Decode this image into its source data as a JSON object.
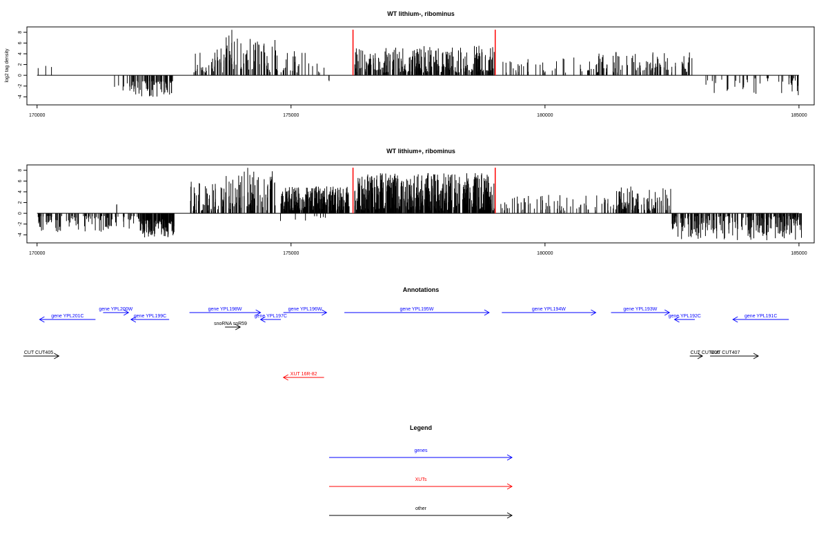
{
  "chart_data": [
    {
      "type": "bar",
      "title": "WT lithium-, ribominus",
      "ylabel": "log2 tag density",
      "xlabel": "",
      "xlim": [
        169800,
        185300
      ],
      "ylim": [
        -5.5,
        9
      ],
      "xticks": [
        170000,
        175000,
        180000,
        185000
      ],
      "yticks": [
        -4,
        -2,
        0,
        2,
        4,
        6,
        8
      ],
      "baseline": [
        170000,
        185000
      ],
      "markers": [
        176220,
        179020
      ],
      "marker_color": "#ff0000",
      "segments": [
        {
          "from": 170000,
          "to": 170300,
          "min": 1.0,
          "max": 2.0,
          "sign": 1,
          "density": 0.01
        },
        {
          "from": 171500,
          "to": 171800,
          "min": 1.5,
          "max": 3.0,
          "sign": -1,
          "density": 0.015
        },
        {
          "from": 171800,
          "to": 172700,
          "min": 1.0,
          "max": 4.0,
          "sign": -1,
          "density": 0.09
        },
        {
          "from": 173050,
          "to": 173700,
          "min": 0.5,
          "max": 5.0,
          "sign": 1,
          "density": 0.06
        },
        {
          "from": 173700,
          "to": 173850,
          "min": 2.0,
          "max": 8.5,
          "sign": 1,
          "density": 0.1
        },
        {
          "from": 173850,
          "to": 174700,
          "min": 0.5,
          "max": 7.0,
          "sign": 1,
          "density": 0.06
        },
        {
          "from": 174700,
          "to": 175700,
          "min": 0.5,
          "max": 4.5,
          "sign": 1,
          "density": 0.03
        },
        {
          "from": 175650,
          "to": 175750,
          "min": 0.5,
          "max": 1.2,
          "sign": -1,
          "density": 0.02
        },
        {
          "from": 176250,
          "to": 179000,
          "min": 0.5,
          "max": 5.5,
          "sign": 1,
          "density": 0.1
        },
        {
          "from": 179100,
          "to": 181000,
          "min": 0.5,
          "max": 3.5,
          "sign": 1,
          "density": 0.02
        },
        {
          "from": 181000,
          "to": 182900,
          "min": 0.5,
          "max": 4.5,
          "sign": 1,
          "density": 0.05
        },
        {
          "from": 183000,
          "to": 185050,
          "min": 0.5,
          "max": 4.0,
          "sign": -1,
          "density": 0.02
        }
      ]
    },
    {
      "type": "bar",
      "title": "WT lithium+, ribominus",
      "ylabel": "",
      "xlabel": "",
      "xlim": [
        169800,
        185300
      ],
      "ylim": [
        -5.5,
        9
      ],
      "xticks": [
        170000,
        175000,
        180000,
        185000
      ],
      "yticks": [
        -4,
        -2,
        0,
        2,
        4,
        6,
        8
      ],
      "baseline": [
        170000,
        185000
      ],
      "markers": [
        176220,
        179020
      ],
      "marker_color": "#ff0000",
      "segments": [
        {
          "from": 170000,
          "to": 171500,
          "min": 0.5,
          "max": 3.5,
          "sign": -1,
          "density": 0.06
        },
        {
          "from": 171500,
          "to": 171600,
          "min": 1.5,
          "max": 2.5,
          "sign": 1,
          "density": 0.02
        },
        {
          "from": 171500,
          "to": 172000,
          "min": 0.5,
          "max": 3.0,
          "sign": -1,
          "density": 0.04
        },
        {
          "from": 172000,
          "to": 172700,
          "min": 1.0,
          "max": 4.5,
          "sign": -1,
          "density": 0.2
        },
        {
          "from": 173000,
          "to": 173700,
          "min": 0.5,
          "max": 6.0,
          "sign": 1,
          "density": 0.08
        },
        {
          "from": 173700,
          "to": 174700,
          "min": 0.5,
          "max": 8.5,
          "sign": 1,
          "density": 0.08
        },
        {
          "from": 174800,
          "to": 176150,
          "min": 0.5,
          "max": 5.0,
          "sign": 1,
          "density": 0.2
        },
        {
          "from": 174700,
          "to": 175700,
          "min": 0.5,
          "max": 2.0,
          "sign": -1,
          "density": 0.008
        },
        {
          "from": 176250,
          "to": 179000,
          "min": 0.5,
          "max": 7.5,
          "sign": 1,
          "density": 0.2
        },
        {
          "from": 179100,
          "to": 181400,
          "min": 0.5,
          "max": 3.5,
          "sign": 1,
          "density": 0.03
        },
        {
          "from": 181400,
          "to": 182500,
          "min": 0.5,
          "max": 5.0,
          "sign": 1,
          "density": 0.08
        },
        {
          "from": 182500,
          "to": 185050,
          "min": 0.5,
          "max": 5.0,
          "sign": -1,
          "density": 0.1
        }
      ]
    }
  ],
  "annotations": {
    "title": "Annotations",
    "xlim": [
      169800,
      185300
    ],
    "colors": {
      "genes": "#0000ff",
      "xuts": "#ff0000",
      "other": "#000000"
    },
    "features": [
      {
        "label": "gene YPL201C",
        "start": 170050,
        "end": 171150,
        "strand": "-",
        "row": 2,
        "kind": "genes"
      },
      {
        "label": "gene YPL200W",
        "start": 171300,
        "end": 171800,
        "strand": "+",
        "row": 1,
        "kind": "genes"
      },
      {
        "label": "gene YPL199C",
        "start": 171850,
        "end": 172600,
        "strand": "-",
        "row": 2,
        "kind": "genes"
      },
      {
        "label": "gene YPL198W",
        "start": 173000,
        "end": 174400,
        "strand": "+",
        "row": 1,
        "kind": "genes"
      },
      {
        "label": "gene YPL197C",
        "start": 174400,
        "end": 174800,
        "strand": "-",
        "row": 2,
        "kind": "genes"
      },
      {
        "label": "snoRNA snR59",
        "start": 173700,
        "end": 174000,
        "strand": "+",
        "row": 3,
        "kind": "other"
      },
      {
        "label": "gene YPL196W",
        "start": 174850,
        "end": 175700,
        "strand": "+",
        "row": 1,
        "kind": "genes"
      },
      {
        "label": "gene YPL195W",
        "start": 176050,
        "end": 178900,
        "strand": "+",
        "row": 1,
        "kind": "genes"
      },
      {
        "label": "gene YPL194W",
        "start": 179150,
        "end": 181000,
        "strand": "+",
        "row": 1,
        "kind": "genes"
      },
      {
        "label": "gene YPL193W",
        "start": 181300,
        "end": 182450,
        "strand": "+",
        "row": 1,
        "kind": "genes"
      },
      {
        "label": "gene YPL192C",
        "start": 182550,
        "end": 182950,
        "strand": "-",
        "row": 2,
        "kind": "genes"
      },
      {
        "label": "gene YPL191C",
        "start": 183700,
        "end": 184800,
        "strand": "-",
        "row": 2,
        "kind": "genes"
      },
      {
        "label": "CUT CUT405",
        "start": 169730,
        "end": 170430,
        "strand": "+",
        "row": 4,
        "kind": "other"
      },
      {
        "label": "CUT CUT406",
        "start": 182850,
        "end": 183100,
        "strand": "+",
        "row": 4,
        "kind": "other"
      },
      {
        "label": "CUT CUT407",
        "start": 183250,
        "end": 184200,
        "strand": "+",
        "row": 4,
        "kind": "other"
      },
      {
        "label": "XUT 16R-82",
        "start": 174850,
        "end": 175650,
        "strand": "-",
        "row": 5,
        "kind": "xuts"
      }
    ]
  },
  "legend": {
    "title": "Legend",
    "items": [
      {
        "label": "genes",
        "color": "#0000ff"
      },
      {
        "label": "XUTs",
        "color": "#ff0000"
      },
      {
        "label": "other",
        "color": "#000000"
      }
    ]
  }
}
